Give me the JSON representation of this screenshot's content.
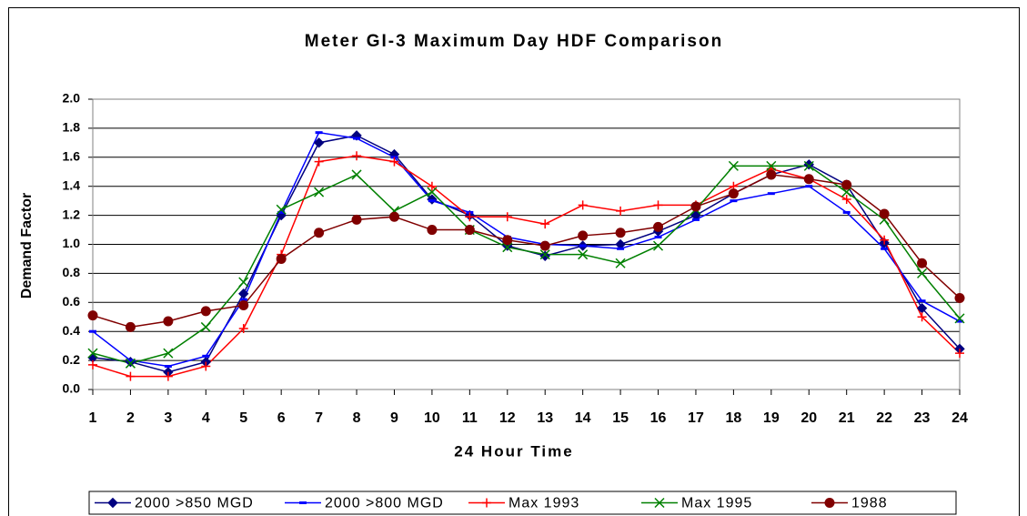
{
  "chart_data": {
    "type": "line",
    "title": "Meter GI-3 Maximum Day HDF Comparison",
    "x_label": "24 Hour Time",
    "y_label": "Demand Factor",
    "x": [
      1,
      2,
      3,
      4,
      5,
      6,
      7,
      8,
      9,
      10,
      11,
      12,
      13,
      14,
      15,
      16,
      17,
      18,
      19,
      20,
      21,
      22,
      23,
      24
    ],
    "xlim": [
      1,
      24
    ],
    "xticks": [
      1,
      2,
      3,
      4,
      5,
      6,
      7,
      8,
      9,
      10,
      11,
      12,
      13,
      14,
      15,
      16,
      17,
      18,
      19,
      20,
      21,
      22,
      23,
      24
    ],
    "ylim": [
      0,
      2
    ],
    "yticks": [
      {
        "value": 0,
        "label": "0.0"
      },
      {
        "value": 0.2,
        "label": "0.2"
      },
      {
        "value": 0.4,
        "label": "0.4"
      },
      {
        "value": 0.6,
        "label": "0.6"
      },
      {
        "value": 0.8,
        "label": "0.8"
      },
      {
        "value": 1,
        "label": "1.0"
      },
      {
        "value": 1.2,
        "label": "1.2"
      },
      {
        "value": 1.4,
        "label": "1.4"
      },
      {
        "value": 1.6,
        "label": "1.6"
      },
      {
        "value": 1.8,
        "label": "1.8"
      },
      {
        "value": 2,
        "label": "2.0"
      }
    ],
    "grid": true,
    "legend": "bottom",
    "series": [
      {
        "name": "2000 >850 MGD",
        "color": "#000080",
        "marker": "diamond",
        "values": [
          0.22,
          0.19,
          0.12,
          0.19,
          0.66,
          1.2,
          1.7,
          1.75,
          1.62,
          1.31,
          1.2,
          0.99,
          0.92,
          0.99,
          1.0,
          1.09,
          1.2,
          1.35,
          1.48,
          1.55,
          1.41,
          1.01,
          0.56,
          0.28
        ]
      },
      {
        "name": "2000 >800 MGD",
        "color": "#0000ff",
        "marker": "dash",
        "values": [
          0.4,
          0.2,
          0.16,
          0.23,
          0.62,
          1.22,
          1.77,
          1.73,
          1.6,
          1.3,
          1.22,
          1.05,
          1.0,
          0.99,
          0.97,
          1.05,
          1.17,
          1.3,
          1.35,
          1.4,
          1.22,
          0.97,
          0.61,
          0.47
        ]
      },
      {
        "name": "Max 1993",
        "color": "#ff0000",
        "marker": "plus",
        "values": [
          0.17,
          0.09,
          0.09,
          0.16,
          0.42,
          0.93,
          1.57,
          1.61,
          1.57,
          1.4,
          1.19,
          1.19,
          1.14,
          1.27,
          1.23,
          1.27,
          1.27,
          1.4,
          1.52,
          1.45,
          1.31,
          1.03,
          0.5,
          0.25
        ]
      },
      {
        "name": "Max 1995",
        "color": "#008000",
        "marker": "cross",
        "values": [
          0.25,
          0.18,
          0.25,
          0.43,
          0.74,
          1.24,
          1.36,
          1.48,
          1.23,
          1.36,
          1.1,
          0.98,
          0.93,
          0.93,
          0.87,
          0.99,
          1.24,
          1.54,
          1.54,
          1.54,
          1.36,
          1.17,
          0.8,
          0.49
        ]
      },
      {
        "name": "1988",
        "color": "#800000",
        "marker": "circle",
        "values": [
          0.51,
          0.43,
          0.47,
          0.54,
          0.58,
          0.9,
          1.08,
          1.17,
          1.19,
          1.1,
          1.1,
          1.03,
          0.99,
          1.06,
          1.08,
          1.12,
          1.26,
          1.35,
          1.48,
          1.45,
          1.41,
          1.21,
          0.87,
          0.63
        ]
      }
    ]
  }
}
